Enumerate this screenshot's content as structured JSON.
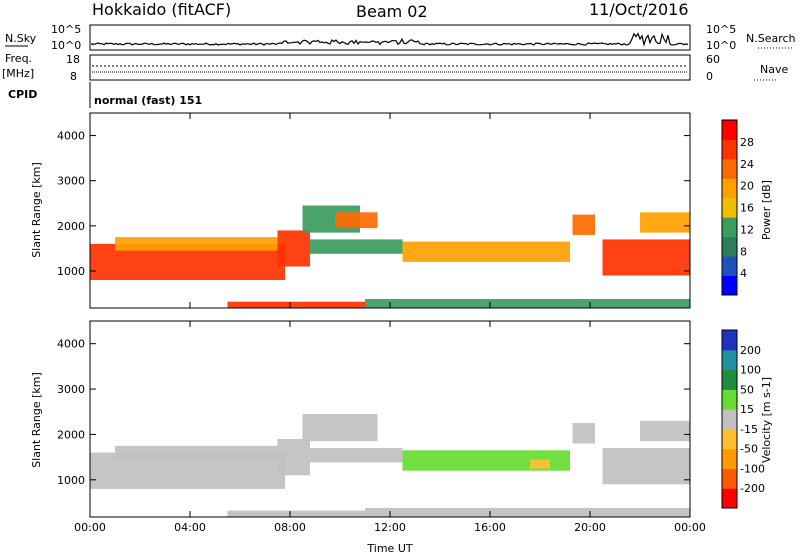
{
  "header": {
    "station": "Hokkaido (fitACF)",
    "beam": "Beam 02",
    "date": "11/Oct/2016"
  },
  "status_panels": {
    "nsky": {
      "label": "N.Sky",
      "ticks": [
        "10^5",
        "10^0"
      ],
      "right_ticks": [
        "10^5",
        "10^0"
      ],
      "right_label": "N.Search"
    },
    "freq": {
      "label_top": "Freq.",
      "label_bottom": "[MHz]",
      "ticks": [
        "18",
        "8"
      ],
      "right_ticks": [
        "60",
        "0"
      ],
      "right_label": "Nave"
    },
    "cpid": {
      "label": "CPID",
      "text": "normal (fast) 151"
    }
  },
  "colors": {
    "power": [
      "#0000ff",
      "#2050c0",
      "#2e7d5a",
      "#3c9c5e",
      "#f0c000",
      "#ffa000",
      "#ff6a00",
      "#ff3200",
      "#ff0000"
    ],
    "velocity": [
      "#ff0000",
      "#ff5a00",
      "#ff9a00",
      "#ffc030",
      "#c0c0c0",
      "#66dd33",
      "#1e8c3a",
      "#2090a0",
      "#2030c0"
    ]
  },
  "chart_data": [
    {
      "type": "heatmap",
      "name": "power",
      "xlabel": "Time UT",
      "ylabel": "Slant Range [km]",
      "xlim": [
        0,
        24
      ],
      "ylim": [
        180,
        4500
      ],
      "x_tick_labels": [
        "00:00",
        "04:00",
        "08:00",
        "12:00",
        "16:00",
        "20:00",
        "00:00"
      ],
      "x_tick_values": [
        0,
        4,
        8,
        12,
        16,
        20,
        24
      ],
      "y_tick_values": [
        1000,
        2000,
        3000,
        4000
      ],
      "y_tick_labels": [
        "1000",
        "2000",
        "3000",
        "4000"
      ],
      "colorbar": {
        "label": "Power [dB]",
        "range": [
          0,
          32
        ],
        "tick_values": [
          4,
          8,
          12,
          16,
          20,
          24,
          28
        ],
        "tick_labels": [
          "4",
          "8",
          "12",
          "16",
          "20",
          "24",
          "28"
        ]
      },
      "regions": [
        {
          "t": [
            0,
            7.8
          ],
          "r": [
            800,
            1600
          ],
          "value": 28
        },
        {
          "t": [
            1,
            7.5
          ],
          "r": [
            1450,
            1750
          ],
          "value": 20
        },
        {
          "t": [
            7.5,
            8.8
          ],
          "r": [
            1100,
            1900
          ],
          "value": 25
        },
        {
          "t": [
            8.5,
            10.8
          ],
          "r": [
            1850,
            2450
          ],
          "value": 13
        },
        {
          "t": [
            9.8,
            11.5
          ],
          "r": [
            1950,
            2300
          ],
          "value": 24
        },
        {
          "t": [
            8.8,
            12.5
          ],
          "r": [
            1380,
            1700
          ],
          "value": 12
        },
        {
          "t": [
            12.5,
            19.2
          ],
          "r": [
            1200,
            1650
          ],
          "value": 21
        },
        {
          "t": [
            19.3,
            20.2
          ],
          "r": [
            1800,
            2250
          ],
          "value": 24
        },
        {
          "t": [
            20.5,
            24
          ],
          "r": [
            900,
            1700
          ],
          "value": 27
        },
        {
          "t": [
            22,
            24
          ],
          "r": [
            1850,
            2300
          ],
          "value": 18
        },
        {
          "t": [
            5.5,
            11
          ],
          "r": [
            180,
            320
          ],
          "value": 26
        },
        {
          "t": [
            11,
            24
          ],
          "r": [
            180,
            380
          ],
          "value": 13
        }
      ]
    },
    {
      "type": "heatmap",
      "name": "velocity",
      "xlabel": "Time UT",
      "ylabel": "Slant Range [km]",
      "xlim": [
        0,
        24
      ],
      "ylim": [
        180,
        4500
      ],
      "x_tick_labels": [
        "00:00",
        "04:00",
        "08:00",
        "12:00",
        "16:00",
        "20:00",
        "00:00"
      ],
      "x_tick_values": [
        0,
        4,
        8,
        12,
        16,
        20,
        24
      ],
      "y_tick_values": [
        1000,
        2000,
        3000,
        4000
      ],
      "y_tick_labels": [
        "1000",
        "2000",
        "3000",
        "4000"
      ],
      "colorbar": {
        "label": "Velocity [m s-1]",
        "boundaries": [
          -300,
          -200,
          -100,
          -50,
          -15,
          15,
          50,
          100,
          200,
          300
        ],
        "tick_labels": [
          "-200",
          "-100",
          "-50",
          "-15",
          "15",
          "50",
          "100",
          "200"
        ]
      },
      "regions": [
        {
          "t": [
            0,
            7.8
          ],
          "r": [
            800,
            1600
          ],
          "value": 0
        },
        {
          "t": [
            1,
            7.5
          ],
          "r": [
            1450,
            1750
          ],
          "value": 0
        },
        {
          "t": [
            7.5,
            8.8
          ],
          "r": [
            1100,
            1900
          ],
          "value": 0
        },
        {
          "t": [
            8.5,
            11.5
          ],
          "r": [
            1850,
            2450
          ],
          "value": 0
        },
        {
          "t": [
            8.8,
            12.5
          ],
          "r": [
            1380,
            1700
          ],
          "value": 0
        },
        {
          "t": [
            12.5,
            19.2
          ],
          "r": [
            1200,
            1650
          ],
          "value": 25
        },
        {
          "t": [
            17.6,
            18.4
          ],
          "r": [
            1250,
            1450
          ],
          "value": -40
        },
        {
          "t": [
            19.3,
            20.2
          ],
          "r": [
            1800,
            2250
          ],
          "value": 0
        },
        {
          "t": [
            20.5,
            24
          ],
          "r": [
            900,
            1700
          ],
          "value": 0
        },
        {
          "t": [
            22,
            24
          ],
          "r": [
            1850,
            2300
          ],
          "value": 0
        },
        {
          "t": [
            5.5,
            11
          ],
          "r": [
            180,
            320
          ],
          "value": 0
        },
        {
          "t": [
            11,
            24
          ],
          "r": [
            180,
            380
          ],
          "value": 0
        }
      ]
    }
  ]
}
